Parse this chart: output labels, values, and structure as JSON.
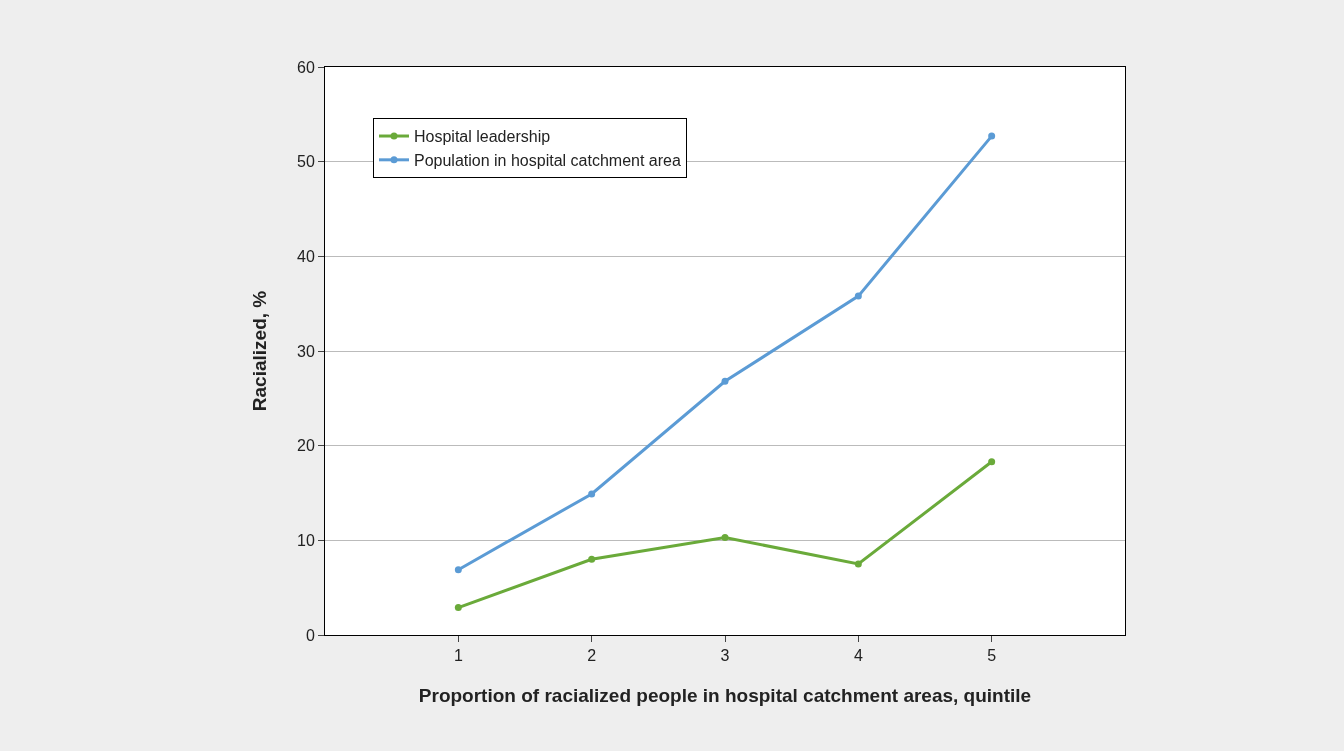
{
  "chart_data": {
    "type": "line",
    "xlabel": "Proportion of racialized people in hospital catchment areas, quintile",
    "ylabel": "Racialized, %",
    "x": [
      1,
      2,
      3,
      4,
      5
    ],
    "series": [
      {
        "name": "Hospital leadership",
        "color": "#6aaa3a",
        "values": [
          2.9,
          8.0,
          10.3,
          7.5,
          18.3
        ]
      },
      {
        "name": "Population in hospital catchment area",
        "color": "#5b9bd5",
        "values": [
          6.9,
          14.9,
          26.8,
          35.8,
          52.7
        ]
      }
    ],
    "xlim": [
      0,
      6
    ],
    "xticks": [
      1,
      2,
      3,
      4,
      5
    ],
    "ylim": [
      0,
      60
    ],
    "yticks": [
      0,
      10,
      20,
      30,
      40,
      50,
      60
    ],
    "grid": "y",
    "legend": "top left",
    "marker": "circle",
    "line_style": "solid"
  }
}
